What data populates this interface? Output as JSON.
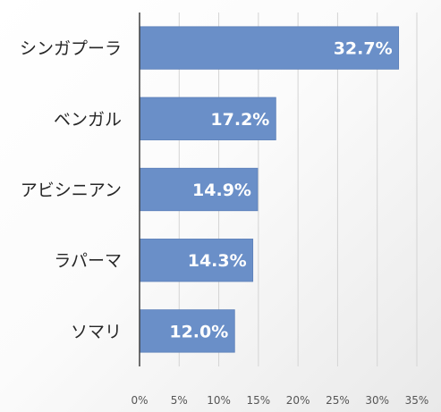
{
  "chart_data": {
    "type": "bar",
    "orientation": "horizontal",
    "title": "",
    "xlabel": "",
    "ylabel": "",
    "categories": [
      "シンガプーラ",
      "ベンガル",
      "アビシニアン",
      "ラパーマ",
      "ソマリ"
    ],
    "values": [
      32.7,
      17.2,
      14.9,
      14.3,
      12.0
    ],
    "value_labels": [
      "32.7%",
      "17.2%",
      "14.9%",
      "14.3%",
      "12.0%"
    ],
    "xlim": [
      0,
      35
    ],
    "x_ticks": [
      0,
      5,
      10,
      15,
      20,
      25,
      30,
      35
    ],
    "x_tick_labels": [
      "0%",
      "5%",
      "10%",
      "15%",
      "20%",
      "25%",
      "30%",
      "35%"
    ],
    "grid": "vertical",
    "legend": "none",
    "colors": {
      "bar": "#6a8fc8",
      "bar_edge": "#5b7fb8",
      "grid": "#d4d4d4",
      "axis": "#404040",
      "value_text": "#ffffff",
      "category_text": "#262626",
      "tick_text": "#555555"
    }
  }
}
